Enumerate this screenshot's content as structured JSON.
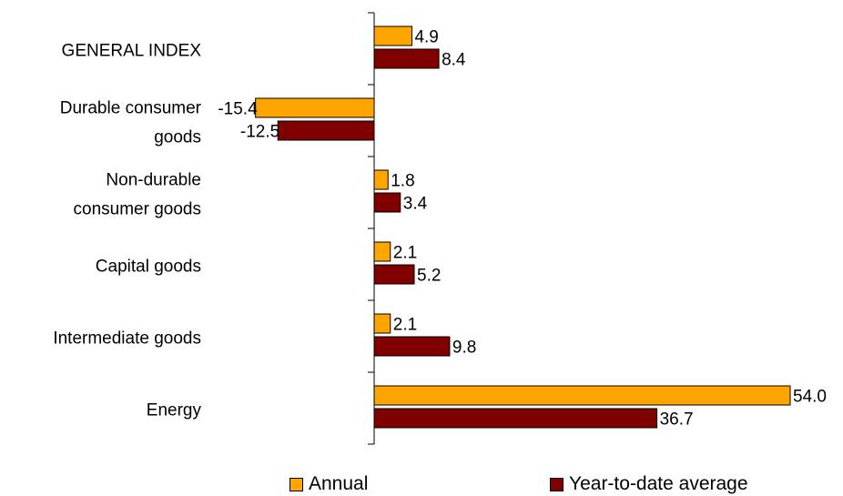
{
  "colors": {
    "annual": "#FFA500",
    "ytd": "#800000",
    "border": "#000000",
    "axis": "#000000"
  },
  "chart_data": {
    "type": "bar",
    "orientation": "horizontal",
    "categories": [
      [
        "GENERAL INDEX"
      ],
      [
        "Durable consumer",
        "goods"
      ],
      [
        "Non-durable",
        "consumer goods"
      ],
      [
        "Capital goods"
      ],
      [
        "Intermediate goods"
      ],
      [
        "Energy"
      ]
    ],
    "series": [
      {
        "name": "Annual",
        "values": [
          4.9,
          -15.4,
          1.8,
          2.1,
          2.1,
          54.0
        ]
      },
      {
        "name": "Year-to-date average",
        "values": [
          8.4,
          -12.5,
          3.4,
          5.2,
          9.8,
          36.7
        ]
      }
    ],
    "value_labels": [
      [
        "4.9",
        "-15.4",
        "1.8",
        "2.1",
        "2.1",
        "54.0"
      ],
      [
        "8.4",
        "-12.5",
        "3.4",
        "5.2",
        "9.8",
        "36.7"
      ]
    ],
    "title": "",
    "xlabel": "",
    "ylabel": "",
    "legend_position": "bottom",
    "grid": false
  },
  "legend": {
    "annual": "Annual",
    "ytd": "Year-to-date average"
  }
}
